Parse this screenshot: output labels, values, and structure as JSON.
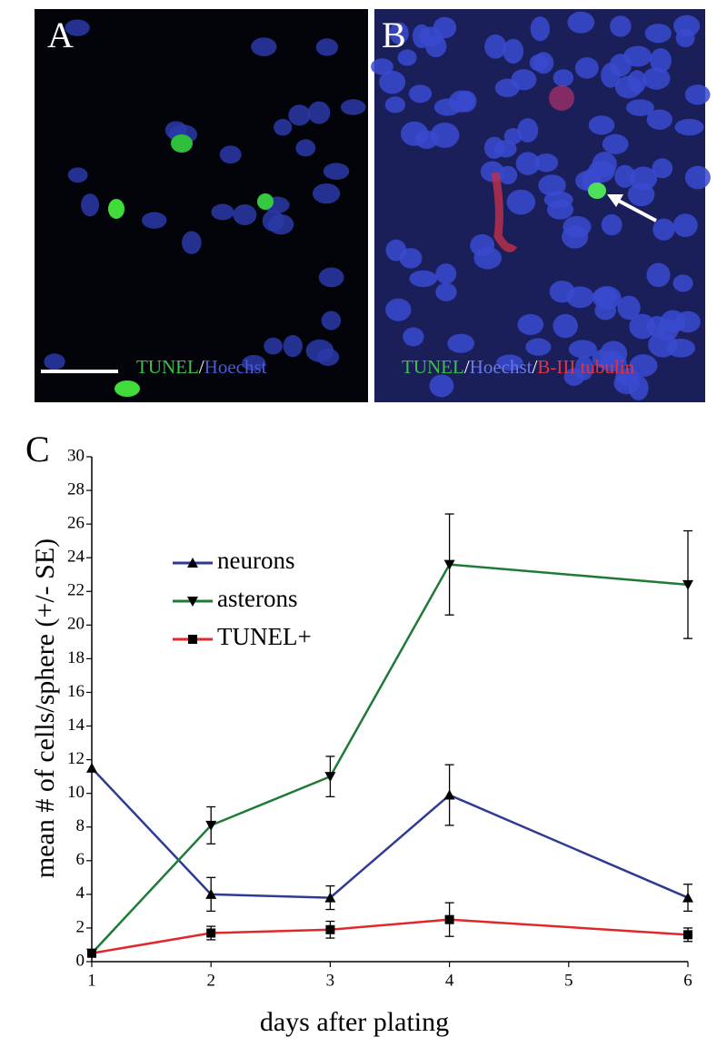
{
  "panels": [
    {
      "label": "A",
      "caption": [
        "TUNEL",
        "/",
        "Hoechst"
      ]
    },
    {
      "label": "B",
      "caption": [
        "TUNEL",
        "/",
        "Hoechst",
        "/",
        "B-III tubulin"
      ]
    }
  ],
  "chart_data": {
    "type": "line",
    "label": "C",
    "x_label": "days after plating",
    "y_label": "mean # of cells/sphere (+/- SE)",
    "x": [
      1,
      2,
      3,
      4,
      6
    ],
    "xlim": [
      1,
      6
    ],
    "xticks": [
      1,
      2,
      3,
      4,
      5,
      6
    ],
    "ylim": [
      0,
      30
    ],
    "yticks": [
      0,
      2,
      4,
      6,
      8,
      10,
      12,
      14,
      16,
      18,
      20,
      22,
      24,
      26,
      28,
      30
    ],
    "series": [
      {
        "name": "neurons",
        "color": "#2e3a93",
        "marker": "triangle-up",
        "values": [
          11.5,
          4.0,
          3.8,
          9.9,
          3.8
        ],
        "errors": [
          null,
          1.0,
          0.7,
          1.8,
          0.8
        ]
      },
      {
        "name": "asterons",
        "color": "#1f7a35",
        "marker": "triangle-down",
        "values": [
          0.5,
          8.1,
          11.0,
          23.6,
          22.4
        ],
        "errors": [
          0.2,
          1.1,
          1.2,
          3.0,
          3.2
        ]
      },
      {
        "name": "TUNEL+",
        "color": "#e0282a",
        "marker": "square",
        "values": [
          0.5,
          1.7,
          1.9,
          2.5,
          1.6
        ],
        "errors": [
          0.2,
          0.4,
          0.5,
          1.0,
          0.4
        ]
      }
    ]
  }
}
